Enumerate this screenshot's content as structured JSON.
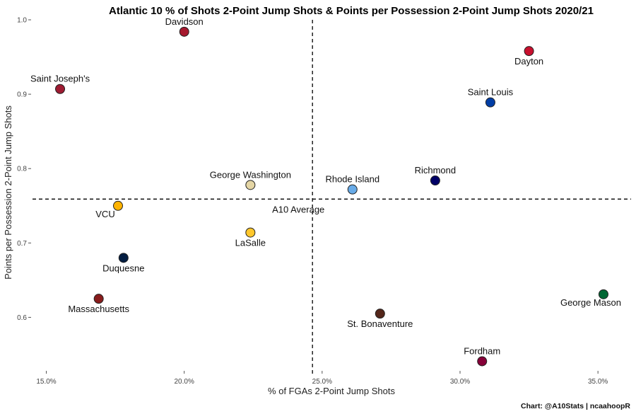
{
  "chart_data": {
    "type": "scatter",
    "title": "Atlantic 10 % of Shots 2-Point Jump Shots & Points per Possession 2-Point Jump Shots 2020/21",
    "xlabel": "% of FGAs 2-Point Jump Shots",
    "ylabel": "Points per Possession 2-Point Jump Shots",
    "caption": "Chart: @A10Stats | ncaahoopR",
    "xlim": [
      0.145,
      0.362
    ],
    "ylim": [
      0.53,
      1.0
    ],
    "x_ticks": [
      0.15,
      0.2,
      0.25,
      0.3,
      0.35
    ],
    "x_tick_labels": [
      "15.0%",
      "20.0%",
      "25.0%",
      "30.0%",
      "35.0%"
    ],
    "y_ticks": [
      0.6,
      0.7,
      0.8,
      0.9,
      1.0
    ],
    "y_tick_labels": [
      "0.6",
      "0.7",
      "0.8",
      "0.9",
      "1.0"
    ],
    "grid": false,
    "reference_lines": {
      "x_average": 0.2465,
      "y_average": 0.759,
      "label": "A10 Average"
    },
    "points": [
      {
        "team": "Davidson",
        "x": 0.2,
        "y": 0.984,
        "color": "#a6192e",
        "label_pos": "above"
      },
      {
        "team": "Saint Joseph's",
        "x": 0.155,
        "y": 0.907,
        "color": "#9e1b32",
        "label_pos": "above"
      },
      {
        "team": "Dayton",
        "x": 0.325,
        "y": 0.958,
        "color": "#c8102e",
        "label_pos": "below"
      },
      {
        "team": "Saint Louis",
        "x": 0.311,
        "y": 0.889,
        "color": "#003da5",
        "label_pos": "above"
      },
      {
        "team": "George Washington",
        "x": 0.224,
        "y": 0.778,
        "color": "#e4d5a4",
        "label_pos": "above"
      },
      {
        "team": "Rhode Island",
        "x": 0.261,
        "y": 0.772,
        "color": "#68abe8",
        "label_pos": "above"
      },
      {
        "team": "Richmond",
        "x": 0.291,
        "y": 0.784,
        "color": "#000066",
        "label_pos": "above"
      },
      {
        "team": "VCU",
        "x": 0.176,
        "y": 0.75,
        "color": "#ffb300",
        "label_pos": "below-left"
      },
      {
        "team": "LaSalle",
        "x": 0.224,
        "y": 0.714,
        "color": "#ffc72c",
        "label_pos": "below"
      },
      {
        "team": "Duquesne",
        "x": 0.178,
        "y": 0.68,
        "color": "#041e42",
        "label_pos": "below"
      },
      {
        "team": "Massachusetts",
        "x": 0.169,
        "y": 0.625,
        "color": "#881c1c",
        "label_pos": "below"
      },
      {
        "team": "George Mason",
        "x": 0.352,
        "y": 0.631,
        "color": "#006633",
        "label_pos": "below-left"
      },
      {
        "team": "St. Bonaventure",
        "x": 0.271,
        "y": 0.605,
        "color": "#54261a",
        "label_pos": "below"
      },
      {
        "team": "Fordham",
        "x": 0.308,
        "y": 0.541,
        "color": "#860038",
        "label_pos": "above"
      }
    ]
  }
}
